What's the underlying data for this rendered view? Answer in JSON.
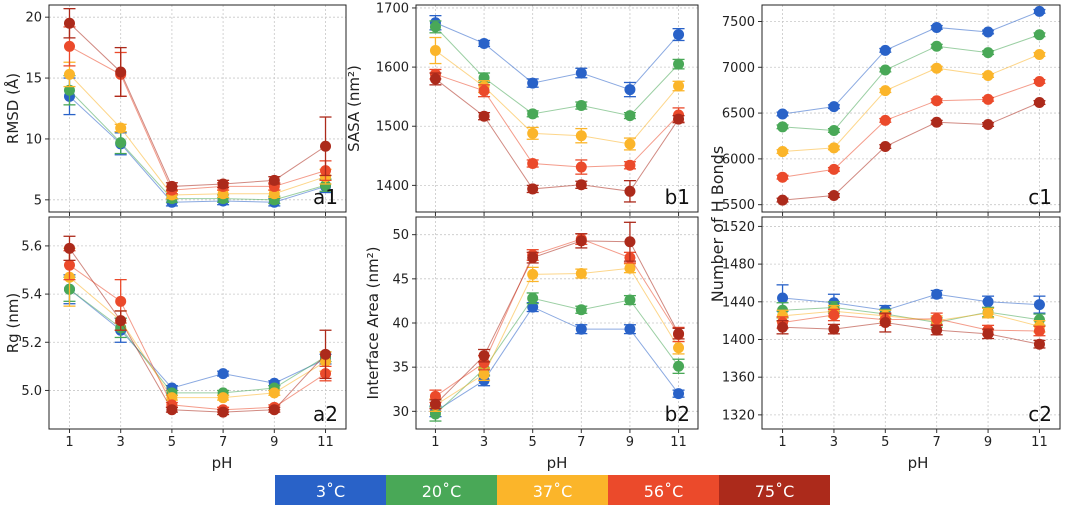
{
  "figure": {
    "x_values": [
      1,
      3,
      5,
      7,
      9,
      11
    ],
    "xlabel": "pH",
    "x_ticks": [
      "1",
      "3",
      "5",
      "7",
      "9",
      "11"
    ]
  },
  "legend": {
    "items": [
      {
        "label": "3˚C",
        "color": "#2962c8"
      },
      {
        "label": "20˚C",
        "color": "#49a857"
      },
      {
        "label": "37˚C",
        "color": "#fbb52a"
      },
      {
        "label": "56˚C",
        "color": "#eb4a2b"
      },
      {
        "label": "75˚C",
        "color": "#ac2a1b"
      }
    ]
  },
  "chart_data": [
    {
      "id": "a1",
      "type": "line",
      "panel_label": "a1",
      "ylabel": "RMSD (Å)",
      "ylim": [
        4,
        21
      ],
      "yticks": [
        5,
        10,
        15,
        20
      ],
      "ytick_labels": [
        "5",
        "10",
        "15",
        "20"
      ],
      "x": [
        1,
        3,
        5,
        7,
        9,
        11
      ],
      "series": [
        {
          "name": "3˚C",
          "values": [
            13.5,
            9.6,
            4.8,
            4.9,
            4.8,
            6.1
          ],
          "errors": [
            1.5,
            0.9,
            0.3,
            0.3,
            0.3,
            0.5
          ]
        },
        {
          "name": "20˚C",
          "values": [
            14.0,
            9.7,
            5.1,
            5.1,
            5.0,
            6.2
          ],
          "errors": [
            1.2,
            0.9,
            0.3,
            0.3,
            0.3,
            0.5
          ]
        },
        {
          "name": "37˚C",
          "values": [
            15.3,
            10.9,
            5.4,
            5.5,
            5.5,
            6.9
          ],
          "errors": [
            1.0,
            0.3,
            0.3,
            0.3,
            0.3,
            0.6
          ]
        },
        {
          "name": "56˚C",
          "values": [
            17.6,
            15.3,
            5.8,
            6.1,
            6.1,
            7.4
          ],
          "errors": [
            1.6,
            1.8,
            0.3,
            0.3,
            0.3,
            0.8
          ]
        },
        {
          "name": "75˚C",
          "values": [
            19.5,
            15.5,
            6.1,
            6.3,
            6.6,
            9.4
          ],
          "errors": [
            1.2,
            2.0,
            0.3,
            0.3,
            0.3,
            2.4
          ]
        }
      ]
    },
    {
      "id": "b1",
      "type": "line",
      "panel_label": "b1",
      "ylabel": "SASA (nm²)",
      "ylim": [
        1355,
        1705
      ],
      "yticks": [
        1400,
        1500,
        1600,
        1700
      ],
      "ytick_labels": [
        "1400",
        "1500",
        "1600",
        "1700"
      ],
      "x": [
        1,
        3,
        5,
        7,
        9,
        11
      ],
      "series": [
        {
          "name": "3˚C",
          "values": [
            1675,
            1640,
            1573,
            1590,
            1562,
            1655
          ],
          "errors": [
            12,
            5,
            7,
            8,
            12,
            10
          ]
        },
        {
          "name": "20˚C",
          "values": [
            1668,
            1582,
            1521,
            1535,
            1518,
            1605
          ],
          "errors": [
            10,
            8,
            5,
            6,
            5,
            8
          ]
        },
        {
          "name": "37˚C",
          "values": [
            1628,
            1567,
            1488,
            1484,
            1470,
            1568
          ],
          "errors": [
            22,
            10,
            10,
            12,
            10,
            8
          ]
        },
        {
          "name": "56˚C",
          "values": [
            1588,
            1560,
            1437,
            1431,
            1434,
            1519
          ],
          "errors": [
            8,
            10,
            6,
            12,
            6,
            12
          ]
        },
        {
          "name": "75˚C",
          "values": [
            1580,
            1517,
            1394,
            1401,
            1390,
            1512
          ],
          "errors": [
            10,
            6,
            6,
            6,
            18,
            6
          ]
        }
      ]
    },
    {
      "id": "c1",
      "type": "line",
      "panel_label": "c1",
      "ylabel": "Number of H Bonds",
      "ylim": [
        5420,
        7680
      ],
      "yticks": [
        5500,
        6000,
        6500,
        7000,
        7500
      ],
      "ytick_labels": [
        "5500",
        "6000",
        "6500",
        "7000",
        "7500"
      ],
      "x": [
        1,
        3,
        5,
        7,
        9,
        11
      ],
      "series": [
        {
          "name": "3˚C",
          "values": [
            6490,
            6570,
            7185,
            7435,
            7385,
            7610
          ],
          "errors": [
            20,
            20,
            20,
            20,
            20,
            20
          ]
        },
        {
          "name": "20˚C",
          "values": [
            6350,
            6310,
            6970,
            7230,
            7160,
            7355
          ],
          "errors": [
            20,
            20,
            20,
            20,
            20,
            20
          ]
        },
        {
          "name": "37˚C",
          "values": [
            6080,
            6120,
            6745,
            6990,
            6910,
            7140
          ],
          "errors": [
            20,
            20,
            20,
            20,
            20,
            20
          ]
        },
        {
          "name": "56˚C",
          "values": [
            5800,
            5885,
            6420,
            6635,
            6650,
            6845
          ],
          "errors": [
            20,
            20,
            20,
            20,
            20,
            20
          ]
        },
        {
          "name": "75˚C",
          "values": [
            5550,
            5600,
            6135,
            6400,
            6375,
            6615
          ],
          "errors": [
            20,
            20,
            20,
            20,
            20,
            20
          ]
        }
      ]
    },
    {
      "id": "a2",
      "type": "line",
      "panel_label": "a2",
      "ylabel": "Rg (nm)",
      "ylim": [
        4.84,
        5.72
      ],
      "yticks": [
        5.0,
        5.2,
        5.4,
        5.6
      ],
      "ytick_labels": [
        "5.0",
        "5.2",
        "5.4",
        "5.6"
      ],
      "x": [
        1,
        3,
        5,
        7,
        9,
        11
      ],
      "series": [
        {
          "name": "3˚C",
          "values": [
            5.42,
            5.25,
            5.01,
            5.07,
            5.03,
            5.13
          ],
          "errors": [
            0.06,
            0.05,
            0.01,
            0.01,
            0.01,
            0.02
          ]
        },
        {
          "name": "20˚C",
          "values": [
            5.42,
            5.26,
            4.99,
            4.99,
            5.01,
            5.14
          ],
          "errors": [
            0.05,
            0.04,
            0.01,
            0.01,
            0.01,
            0.02
          ]
        },
        {
          "name": "37˚C",
          "values": [
            5.47,
            5.29,
            4.97,
            4.97,
            4.99,
            5.12
          ],
          "errors": [
            0.12,
            0.04,
            0.01,
            0.01,
            0.01,
            0.04
          ]
        },
        {
          "name": "56˚C",
          "values": [
            5.52,
            5.37,
            4.94,
            4.92,
            4.93,
            5.07
          ],
          "errors": [
            0.06,
            0.09,
            0.01,
            0.01,
            0.01,
            0.03
          ]
        },
        {
          "name": "75˚C",
          "values": [
            5.59,
            5.29,
            4.92,
            4.91,
            4.92,
            5.15
          ],
          "errors": [
            0.05,
            0.04,
            0.01,
            0.01,
            0.01,
            0.1
          ]
        }
      ]
    },
    {
      "id": "b2",
      "type": "line",
      "panel_label": "b2",
      "ylabel": "Interface Area (nm²)",
      "ylim": [
        28,
        52
      ],
      "yticks": [
        30,
        35,
        40,
        45,
        50
      ],
      "ytick_labels": [
        "30",
        "35",
        "40",
        "45",
        "50"
      ],
      "x": [
        1,
        3,
        5,
        7,
        9,
        11
      ],
      "series": [
        {
          "name": "3˚C",
          "values": [
            30.0,
            33.5,
            41.8,
            39.3,
            39.3,
            32.0
          ],
          "errors": [
            0.6,
            0.6,
            0.5,
            0.5,
            0.5,
            0.4
          ]
        },
        {
          "name": "20˚C",
          "values": [
            29.7,
            34.8,
            42.8,
            41.5,
            42.6,
            35.1
          ],
          "errors": [
            0.8,
            0.8,
            0.6,
            0.4,
            0.5,
            0.8
          ]
        },
        {
          "name": "37˚C",
          "values": [
            30.7,
            34.2,
            45.5,
            45.6,
            46.2,
            37.2
          ],
          "errors": [
            0.7,
            0.7,
            0.8,
            0.5,
            0.5,
            0.7
          ]
        },
        {
          "name": "56˚C",
          "values": [
            31.7,
            35.5,
            47.7,
            49.5,
            47.4,
            38.7
          ],
          "errors": [
            0.7,
            0.8,
            0.6,
            0.6,
            0.6,
            0.8
          ]
        },
        {
          "name": "75˚C",
          "values": [
            30.8,
            36.3,
            47.4,
            49.3,
            49.2,
            38.8
          ],
          "errors": [
            0.5,
            0.7,
            0.6,
            0.8,
            2.2,
            0.6
          ]
        }
      ]
    },
    {
      "id": "c2",
      "type": "line",
      "panel_label": "c2",
      "ylabel": "",
      "ylim": [
        1305,
        1530
      ],
      "yticks": [
        1320,
        1360,
        1400,
        1440,
        1480,
        1520
      ],
      "ytick_labels": [
        "1320",
        "1360",
        "1400",
        "1440",
        "1480",
        "1520"
      ],
      "x": [
        1,
        3,
        5,
        7,
        9,
        11
      ],
      "series": [
        {
          "name": "3˚C",
          "values": [
            1444,
            1439,
            1431,
            1448,
            1440,
            1437
          ],
          "errors": [
            14,
            9,
            5,
            4,
            6,
            9
          ]
        },
        {
          "name": "20˚C",
          "values": [
            1431,
            1434,
            1427,
            1418,
            1429,
            1421
          ],
          "errors": [
            8,
            6,
            5,
            5,
            5,
            6
          ]
        },
        {
          "name": "37˚C",
          "values": [
            1425,
            1430,
            1425,
            1420,
            1428,
            1414
          ],
          "errors": [
            6,
            6,
            6,
            5,
            5,
            6
          ]
        },
        {
          "name": "56˚C",
          "values": [
            1418,
            1426,
            1421,
            1422,
            1410,
            1409
          ],
          "errors": [
            6,
            6,
            6,
            6,
            5,
            5
          ]
        },
        {
          "name": "75˚C",
          "values": [
            1413,
            1411,
            1418,
            1410,
            1406,
            1395
          ],
          "errors": [
            7,
            5,
            10,
            5,
            5,
            4
          ]
        }
      ]
    }
  ]
}
